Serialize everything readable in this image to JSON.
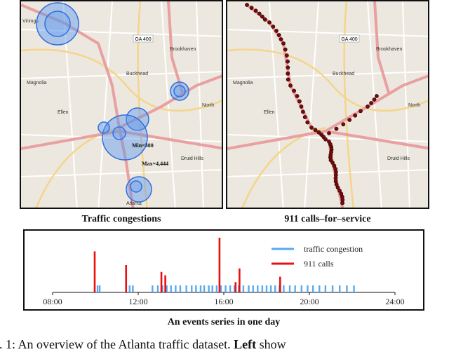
{
  "figure": {
    "left_map": {
      "caption": "Traffic congestions",
      "labels": {
        "vinings": "Vinings",
        "brookhaven": "Brookhaven",
        "buckhead": "Buckhead",
        "magnolia": "Magnolia",
        "ellen": "Ellen",
        "druid_hills": "Druid Hills",
        "atlanta": "Atlanta",
        "ga400": "GA 400",
        "north": "North",
        "min_label": "Min=380",
        "max_label": "Max=4,444"
      }
    },
    "right_map": {
      "caption": "911 calls–for–service",
      "labels": {
        "brookhaven": "Brookhaven",
        "buckhead": "Buckhead",
        "magnolia": "Magnolia",
        "ellen": "Ellen",
        "druid_hills": "Druid Hills",
        "ga400": "GA 400",
        "north": "North"
      }
    },
    "events_caption": "An events series in one day",
    "colors": {
      "traffic": "#5aaaf0",
      "calls": "#e81010",
      "map_bg": "#ece8df",
      "road": "#e8a0a0",
      "circle": "#3a7ee8"
    }
  },
  "chart_data": {
    "type": "bar",
    "title": "",
    "xlabel": "",
    "ylabel": "",
    "xlim": [
      "08:00",
      "24:00"
    ],
    "xticks": [
      "08:00",
      "12:00",
      "16:00",
      "20:00",
      "24:00"
    ],
    "legend_position": "top-right",
    "series": [
      {
        "name": "traffic congestion",
        "color": "#5aaaf0",
        "x": [
          "10:06",
          "10:12",
          "11:36",
          "11:45",
          "12:40",
          "12:55",
          "13:08",
          "13:20",
          "13:32",
          "13:45",
          "13:58",
          "14:15",
          "14:30",
          "14:42",
          "14:55",
          "15:05",
          "15:18",
          "15:28",
          "15:40",
          "15:52",
          "16:05",
          "16:18",
          "16:30",
          "16:42",
          "16:55",
          "17:10",
          "17:22",
          "17:35",
          "17:48",
          "18:00",
          "18:12",
          "18:24",
          "18:36",
          "18:48",
          "19:05",
          "19:20",
          "19:38",
          "19:55",
          "20:10",
          "20:28",
          "20:45",
          "21:05",
          "21:25",
          "21:45",
          "22:05"
        ],
        "y": [
          1,
          1,
          1,
          1,
          1,
          1,
          1,
          1,
          1,
          1,
          1,
          1,
          1,
          1,
          1,
          1,
          1,
          1,
          1,
          1,
          1,
          1,
          1,
          1,
          1,
          1,
          1,
          1,
          1,
          1,
          1,
          1,
          1,
          1,
          1,
          1,
          1,
          1,
          1,
          1,
          1,
          1,
          1,
          1,
          1
        ]
      },
      {
        "name": "911 calls",
        "color": "#e81010",
        "x": [
          "09:58",
          "11:26",
          "13:05",
          "13:16",
          "15:48",
          "16:33",
          "16:44",
          "18:38"
        ],
        "y": [
          6,
          4,
          3,
          2.5,
          8,
          1.5,
          3.5,
          2.3
        ]
      }
    ]
  },
  "body_caption": {
    "prefix": "g. 1: An overview of the Atlanta traffic dataset.",
    "bold": "Left",
    "suffix": "show"
  }
}
